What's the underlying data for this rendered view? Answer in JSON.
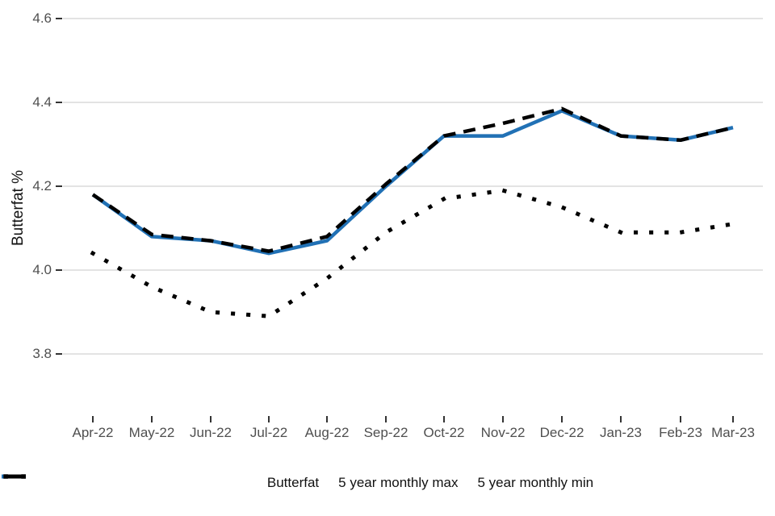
{
  "chart_data": {
    "type": "line",
    "title": "",
    "xlabel": "",
    "ylabel": "Butterfat %",
    "categories": [
      "Apr-22",
      "May-22",
      "Jun-22",
      "Jul-22",
      "Aug-22",
      "Sep-22",
      "Oct-22",
      "Nov-22",
      "Dec-22",
      "Jan-23",
      "Feb-23",
      "Mar-23"
    ],
    "yticks": [
      3.8,
      4.0,
      4.2,
      4.4,
      4.6
    ],
    "ytick_labels": [
      "3.8",
      "4.0",
      "4.2",
      "4.4",
      "4.6"
    ],
    "ylim": [
      3.65,
      4.63
    ],
    "grid": "horizontal",
    "legend_position": "bottom",
    "colors": {
      "butterfat_blue": "#2171b5",
      "max_min_black": "#000000",
      "gridline": "#e3e3e3",
      "tick": "#333333",
      "axis_text": "#4f4f4f"
    },
    "series": [
      {
        "name": "Butterfat",
        "color": "#2171b5",
        "style": "solid",
        "values": [
          4.18,
          4.08,
          4.07,
          4.04,
          4.07,
          4.2,
          4.32,
          4.32,
          4.38,
          4.32,
          4.31,
          4.34
        ]
      },
      {
        "name": "5 year monthly max",
        "color": "#000000",
        "style": "dashed",
        "values": [
          4.18,
          4.085,
          4.07,
          4.045,
          4.08,
          4.205,
          4.32,
          4.35,
          4.385,
          4.32,
          4.31,
          4.34
        ]
      },
      {
        "name": "5 year monthly min",
        "color": "#000000",
        "style": "dotted",
        "values": [
          4.04,
          3.96,
          3.9,
          3.89,
          3.98,
          4.09,
          4.17,
          4.19,
          4.15,
          4.09,
          4.09,
          4.11
        ]
      }
    ]
  }
}
